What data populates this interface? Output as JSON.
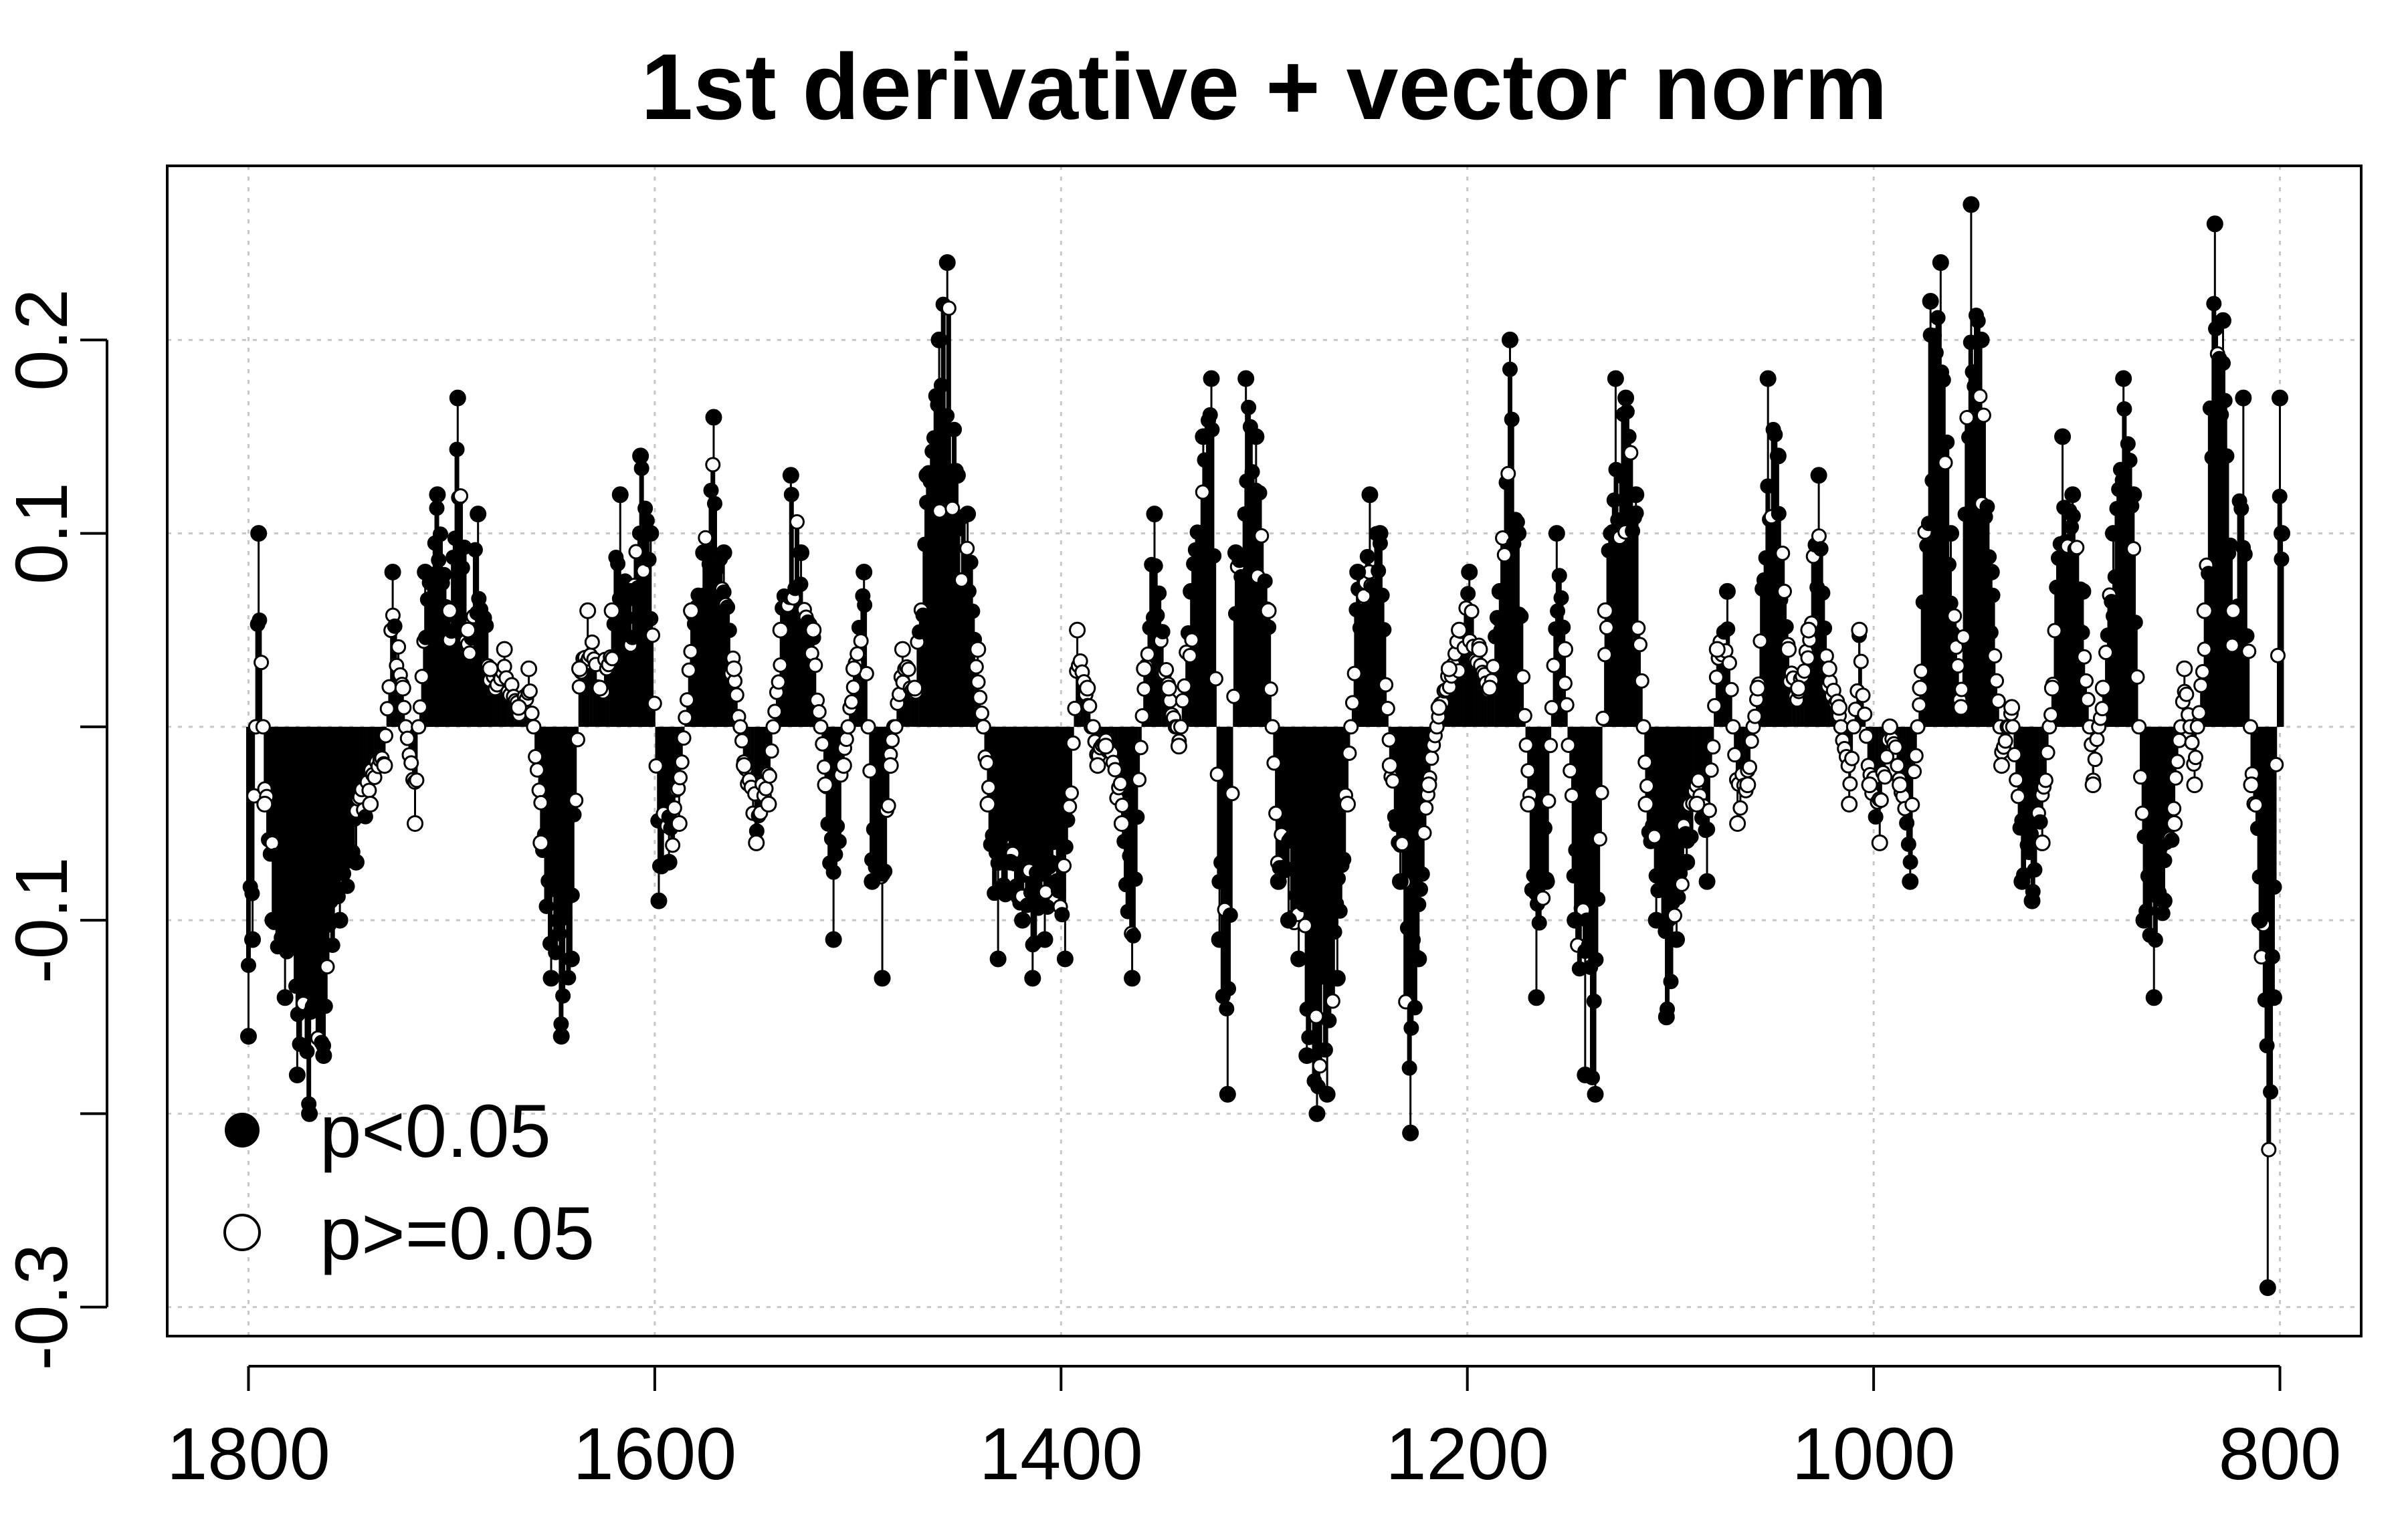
{
  "chart_data": {
    "type": "scatter",
    "title": "1st derivative + vector norm",
    "xlabel": "",
    "ylabel": "",
    "x_reversed": true,
    "xlim": [
      1840,
      760
    ],
    "ylim": [
      -0.315,
      0.29
    ],
    "xticks": [
      {
        "value": 1800,
        "label": "1800"
      },
      {
        "value": 1600,
        "label": "1600"
      },
      {
        "value": 1400,
        "label": "1400"
      },
      {
        "value": 1200,
        "label": "1200"
      },
      {
        "value": 1000,
        "label": "1000"
      },
      {
        "value": 800,
        "label": "800"
      }
    ],
    "yticks": [
      {
        "value": -0.3,
        "label": "-0.3"
      },
      {
        "value": -0.2,
        "label": ""
      },
      {
        "value": -0.1,
        "label": "-0.1"
      },
      {
        "value": 0.0,
        "label": ""
      },
      {
        "value": 0.1,
        "label": "0.1"
      },
      {
        "value": 0.2,
        "label": "0.2"
      }
    ],
    "grid": true,
    "grid_style": "dotted",
    "legend_position": "bottom-left",
    "legend": [
      {
        "label": "p<0.05",
        "marker": "filled-circle"
      },
      {
        "label": "p>=0.05",
        "marker": "open-circle"
      }
    ],
    "colors": {
      "marks": "#000000",
      "grid": "#c8c8c8",
      "background": "#ffffff"
    },
    "profile_anchors": [
      [
        1800,
        -0.16
      ],
      [
        1798,
        -0.11
      ],
      [
        1795,
        0.1
      ],
      [
        1792,
        -0.04
      ],
      [
        1788,
        -0.1
      ],
      [
        1782,
        -0.14
      ],
      [
        1776,
        -0.18
      ],
      [
        1770,
        -0.2
      ],
      [
        1763,
        -0.17
      ],
      [
        1755,
        -0.1
      ],
      [
        1747,
        -0.07
      ],
      [
        1740,
        -0.04
      ],
      [
        1733,
        -0.02
      ],
      [
        1729,
        0.08
      ],
      [
        1724,
        0.02
      ],
      [
        1718,
        -0.05
      ],
      [
        1713,
        0.08
      ],
      [
        1707,
        0.12
      ],
      [
        1701,
        0.06
      ],
      [
        1697,
        0.17
      ],
      [
        1692,
        0.05
      ],
      [
        1687,
        0.11
      ],
      [
        1681,
        0.03
      ],
      [
        1674,
        0.04
      ],
      [
        1667,
        0.01
      ],
      [
        1662,
        0.03
      ],
      [
        1656,
        -0.06
      ],
      [
        1651,
        -0.13
      ],
      [
        1646,
        -0.16
      ],
      [
        1641,
        -0.12
      ],
      [
        1637,
        0.03
      ],
      [
        1633,
        0.06
      ],
      [
        1627,
        0.02
      ],
      [
        1621,
        0.06
      ],
      [
        1617,
        0.12
      ],
      [
        1612,
        0.07
      ],
      [
        1607,
        0.14
      ],
      [
        1602,
        0.1
      ],
      [
        1598,
        -0.09
      ],
      [
        1593,
        -0.07
      ],
      [
        1588,
        -0.05
      ],
      [
        1582,
        0.06
      ],
      [
        1576,
        0.09
      ],
      [
        1571,
        0.16
      ],
      [
        1566,
        0.09
      ],
      [
        1561,
        0.03
      ],
      [
        1556,
        -0.02
      ],
      [
        1550,
        -0.06
      ],
      [
        1544,
        -0.04
      ],
      [
        1538,
        0.05
      ],
      [
        1533,
        0.13
      ],
      [
        1528,
        0.09
      ],
      [
        1522,
        0.05
      ],
      [
        1516,
        -0.03
      ],
      [
        1512,
        -0.11
      ],
      [
        1507,
        -0.02
      ],
      [
        1502,
        0.03
      ],
      [
        1497,
        0.08
      ],
      [
        1493,
        -0.08
      ],
      [
        1488,
        -0.13
      ],
      [
        1484,
        -0.02
      ],
      [
        1478,
        0.04
      ],
      [
        1472,
        0.02
      ],
      [
        1466,
        0.13
      ],
      [
        1460,
        0.2
      ],
      [
        1456,
        0.24
      ],
      [
        1451,
        0.13
      ],
      [
        1446,
        0.11
      ],
      [
        1441,
        0.04
      ],
      [
        1436,
        -0.04
      ],
      [
        1431,
        -0.12
      ],
      [
        1425,
        -0.07
      ],
      [
        1419,
        -0.1
      ],
      [
        1414,
        -0.13
      ],
      [
        1408,
        -0.11
      ],
      [
        1402,
        -0.08
      ],
      [
        1398,
        -0.12
      ],
      [
        1392,
        0.05
      ],
      [
        1387,
        0.02
      ],
      [
        1382,
        -0.02
      ],
      [
        1378,
        -0.01
      ],
      [
        1370,
        -0.05
      ],
      [
        1365,
        -0.13
      ],
      [
        1359,
        0.03
      ],
      [
        1354,
        0.11
      ],
      [
        1347,
        0.02
      ],
      [
        1342,
        -0.01
      ],
      [
        1336,
        0.07
      ],
      [
        1330,
        0.15
      ],
      [
        1326,
        0.18
      ],
      [
        1322,
        -0.11
      ],
      [
        1318,
        -0.19
      ],
      [
        1314,
        0.09
      ],
      [
        1309,
        0.18
      ],
      [
        1304,
        0.15
      ],
      [
        1298,
        0.06
      ],
      [
        1293,
        -0.08
      ],
      [
        1288,
        -0.1
      ],
      [
        1283,
        -0.12
      ],
      [
        1279,
        -0.17
      ],
      [
        1274,
        -0.2
      ],
      [
        1269,
        -0.19
      ],
      [
        1264,
        -0.13
      ],
      [
        1259,
        -0.04
      ],
      [
        1254,
        0.08
      ],
      [
        1248,
        0.12
      ],
      [
        1243,
        0.1
      ],
      [
        1238,
        -0.02
      ],
      [
        1233,
        -0.08
      ],
      [
        1228,
        -0.21
      ],
      [
        1224,
        -0.12
      ],
      [
        1219,
        -0.03
      ],
      [
        1214,
        0.01
      ],
      [
        1209,
        0.03
      ],
      [
        1204,
        0.05
      ],
      [
        1199,
        0.08
      ],
      [
        1194,
        0.04
      ],
      [
        1189,
        0.02
      ],
      [
        1184,
        0.07
      ],
      [
        1179,
        0.2
      ],
      [
        1175,
        0.1
      ],
      [
        1170,
        -0.04
      ],
      [
        1166,
        -0.14
      ],
      [
        1161,
        -0.08
      ],
      [
        1156,
        0.1
      ],
      [
        1152,
        0.04
      ],
      [
        1147,
        -0.1
      ],
      [
        1142,
        -0.18
      ],
      [
        1137,
        -0.19
      ],
      [
        1132,
        0.06
      ],
      [
        1127,
        0.18
      ],
      [
        1122,
        0.17
      ],
      [
        1117,
        0.12
      ],
      [
        1112,
        -0.04
      ],
      [
        1107,
        -0.1
      ],
      [
        1102,
        -0.15
      ],
      [
        1097,
        -0.11
      ],
      [
        1092,
        -0.07
      ],
      [
        1087,
        -0.04
      ],
      [
        1082,
        -0.08
      ],
      [
        1077,
        0.04
      ],
      [
        1072,
        0.07
      ],
      [
        1067,
        -0.05
      ],
      [
        1062,
        -0.03
      ],
      [
        1057,
        0.02
      ],
      [
        1052,
        0.18
      ],
      [
        1047,
        0.14
      ],
      [
        1042,
        0.04
      ],
      [
        1037,
        0.02
      ],
      [
        1032,
        0.05
      ],
      [
        1027,
        0.13
      ],
      [
        1022,
        0.03
      ],
      [
        1017,
        0.01
      ],
      [
        1012,
        -0.04
      ],
      [
        1007,
        0.05
      ],
      [
        1002,
        -0.03
      ],
      [
        997,
        -0.06
      ],
      [
        992,
        0.0
      ],
      [
        987,
        -0.03
      ],
      [
        982,
        -0.08
      ],
      [
        977,
        0.02
      ],
      [
        972,
        0.22
      ],
      [
        967,
        0.24
      ],
      [
        962,
        0.1
      ],
      [
        957,
        0.01
      ],
      [
        952,
        0.27
      ],
      [
        947,
        0.2
      ],
      [
        942,
        0.08
      ],
      [
        937,
        -0.02
      ],
      [
        932,
        0.01
      ],
      [
        927,
        -0.08
      ],
      [
        922,
        -0.09
      ],
      [
        917,
        -0.06
      ],
      [
        912,
        0.02
      ],
      [
        907,
        0.15
      ],
      [
        902,
        0.12
      ],
      [
        897,
        0.07
      ],
      [
        892,
        -0.03
      ],
      [
        887,
        0.02
      ],
      [
        882,
        0.1
      ],
      [
        877,
        0.18
      ],
      [
        872,
        0.12
      ],
      [
        867,
        -0.1
      ],
      [
        862,
        -0.14
      ],
      [
        857,
        -0.09
      ],
      [
        852,
        -0.05
      ],
      [
        847,
        0.03
      ],
      [
        842,
        -0.03
      ],
      [
        837,
        0.06
      ],
      [
        832,
        0.26
      ],
      [
        828,
        0.21
      ],
      [
        823,
        0.06
      ],
      [
        818,
        0.17
      ],
      [
        814,
        -0.03
      ],
      [
        810,
        -0.1
      ],
      [
        806,
        -0.29
      ],
      [
        803,
        -0.14
      ],
      [
        800,
        0.17
      ],
      [
        799,
        0.1
      ]
    ]
  }
}
